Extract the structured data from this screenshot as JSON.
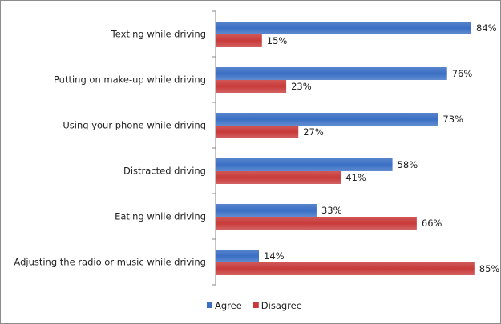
{
  "chart_data": {
    "type": "bar",
    "orientation": "horizontal",
    "categories": [
      "Texting while driving",
      "Putting on make-up while driving",
      "Using your phone while driving",
      "Distracted driving",
      "Eating while driving",
      "Adjusting the radio or music while driving"
    ],
    "series": [
      {
        "name": "Agree",
        "values": [
          84,
          76,
          73,
          58,
          33,
          14
        ],
        "color": "#3a6fc4"
      },
      {
        "name": "Disagree",
        "values": [
          15,
          23,
          27,
          41,
          66,
          85
        ],
        "color": "#c83a3a"
      }
    ],
    "value_suffix": "%",
    "xlim": [
      0,
      100
    ],
    "grid": false,
    "legend": "bottom",
    "title": "",
    "xlabel": "",
    "ylabel": ""
  }
}
